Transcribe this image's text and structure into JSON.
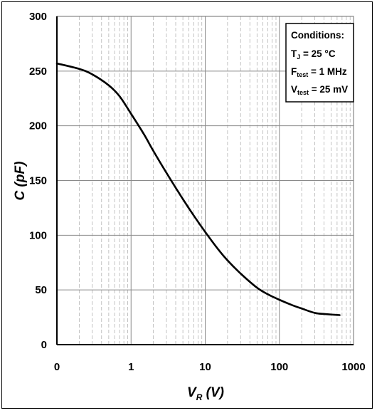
{
  "chart_data": {
    "type": "line",
    "xscale": "log",
    "x_tick_labels": [
      "0",
      "1",
      "10",
      "100",
      "1000"
    ],
    "y_tick_labels": [
      "0",
      "50",
      "100",
      "150",
      "200",
      "250",
      "300"
    ],
    "xlim": [
      0.1,
      1000
    ],
    "ylim": [
      0,
      300
    ],
    "xlabel": {
      "main": "V",
      "sub": "R",
      "unit": " (V)"
    },
    "ylabel": "C (pF)",
    "grid": true,
    "series": [
      {
        "x": [
          0.1,
          0.2,
          0.3,
          0.5,
          0.7,
          1,
          1.5,
          2,
          3,
          5,
          7,
          10,
          15,
          20,
          30,
          50,
          70,
          100,
          150,
          200,
          300,
          400,
          500,
          650
        ],
        "y": [
          257,
          252,
          247,
          237,
          227,
          211,
          192,
          177,
          157,
          133,
          118,
          103,
          87,
          77,
          65,
          52,
          46,
          41,
          36,
          33,
          29,
          28,
          27.5,
          27
        ]
      }
    ],
    "annotation": {
      "title": "Conditions:",
      "lines": [
        {
          "main": "T",
          "sub": "J",
          "rest": " = 25 °C"
        },
        {
          "main": "F",
          "sub": "test",
          "rest": " = 1 MHz"
        },
        {
          "main": "V",
          "sub": "test",
          "rest": " = 25 mV"
        }
      ]
    }
  }
}
